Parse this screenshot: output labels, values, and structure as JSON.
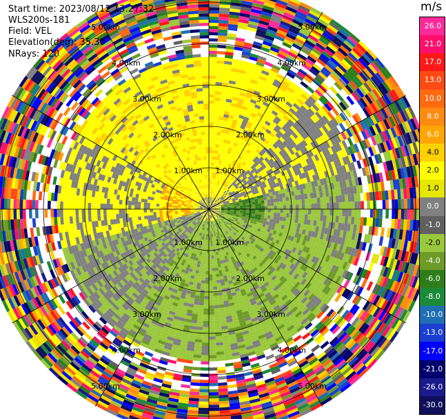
{
  "header": {
    "start_time": "Start time: 2023/08/12 13:27:32",
    "instrument": "WLS200s-181",
    "field": "Field: VEL",
    "elevation": "Elevation(deg): 35.30",
    "nrays": "NRays: 120"
  },
  "colorbar": {
    "unit": "m/s",
    "ticks": [
      "26.0",
      "21.0",
      "17.0",
      "13.0",
      "10.0",
      "8.0",
      "6.0",
      "4.0",
      "2.0",
      "1.0",
      "0.0",
      "-1.0",
      "-2.0",
      "-4.0",
      "-6.0",
      "-8.0",
      "-10.0",
      "-13.0",
      "-17.0",
      "-21.0",
      "-26.0",
      "-30.0"
    ],
    "colors": [
      "#ff2a9a",
      "#ff0f6a",
      "#ff1818",
      "#ff4a14",
      "#ff6a10",
      "#ff8a10",
      "#ffa500",
      "#ffd000",
      "#ffff00",
      "#e6e600",
      "#808080",
      "#606060",
      "#9ac83c",
      "#6e9a28",
      "#2e7d1a",
      "#1b8a3a",
      "#1e6fb4",
      "#1a3fd0",
      "#0000ff",
      "#00006e",
      "#1a1a8c",
      "#10105a"
    ]
  },
  "chart_data": {
    "type": "heatmap",
    "title": "",
    "projection": "polar PPI",
    "range_ring_labels": [
      "1.00km",
      "2.00km",
      "3.00km",
      "4.00km",
      "5.00km"
    ],
    "range_rings_km": [
      1,
      2,
      3,
      4,
      5
    ],
    "max_range_km": 5.5,
    "n_rays": 120,
    "field": "VEL",
    "units": "m/s",
    "value_range": [
      -30,
      30
    ],
    "pattern": {
      "inner_noise_free_radius_km": 3.6,
      "north_half_dominant_value": 2.0,
      "south_half_dominant_value": -2.0,
      "west_sector_dominant_value": 0.0,
      "east_center_value": -6.0
    }
  }
}
